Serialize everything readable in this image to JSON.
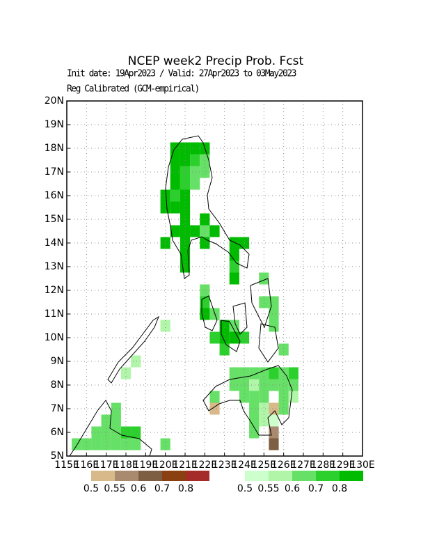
{
  "chart_data": {
    "type": "grid_map",
    "title": "NCEP week2 Precip Prob. Fcst",
    "subtitle": [
      "Init date: 19Apr2023 / Valid: 27Apr2023 to 03May2023",
      "Reg Calibrated (GCM-empirical)"
    ],
    "xlim": [
      115,
      130
    ],
    "ylim": [
      5,
      20
    ],
    "xticks": [
      {
        "value": 115,
        "label": "115E"
      },
      {
        "value": 116,
        "label": "116E"
      },
      {
        "value": 117,
        "label": "117E"
      },
      {
        "value": 118,
        "label": "118E"
      },
      {
        "value": 119,
        "label": "119E"
      },
      {
        "value": 120,
        "label": "120E"
      },
      {
        "value": 121,
        "label": "121E"
      },
      {
        "value": 122,
        "label": "122E"
      },
      {
        "value": 123,
        "label": "123E"
      },
      {
        "value": 124,
        "label": "124E"
      },
      {
        "value": 125,
        "label": "125E"
      },
      {
        "value": 126,
        "label": "126E"
      },
      {
        "value": 127,
        "label": "127E"
      },
      {
        "value": 128,
        "label": "128E"
      },
      {
        "value": 129,
        "label": "129E"
      },
      {
        "value": 130,
        "label": "130E"
      }
    ],
    "yticks": [
      {
        "value": 5,
        "label": "5N"
      },
      {
        "value": 6,
        "label": "6N"
      },
      {
        "value": 7,
        "label": "7N"
      },
      {
        "value": 8,
        "label": "8N"
      },
      {
        "value": 9,
        "label": "9N"
      },
      {
        "value": 10,
        "label": "10N"
      },
      {
        "value": 11,
        "label": "11N"
      },
      {
        "value": 12,
        "label": "12N"
      },
      {
        "value": 13,
        "label": "13N"
      },
      {
        "value": 14,
        "label": "14N"
      },
      {
        "value": 15,
        "label": "15N"
      },
      {
        "value": 16,
        "label": "16N"
      },
      {
        "value": 17,
        "label": "17N"
      },
      {
        "value": 18,
        "label": "18N"
      },
      {
        "value": 19,
        "label": "19N"
      },
      {
        "value": 20,
        "label": "20N"
      }
    ],
    "grid": true,
    "cell_size": 0.5,
    "dry_legend": {
      "labels": [
        0.5,
        0.55,
        0.6,
        0.7,
        0.8
      ],
      "colors": [
        "#d7b98a",
        "#a98a6e",
        "#7e5e42",
        "#8a4010",
        "#a52a2a"
      ]
    },
    "wet_legend": {
      "labels": [
        0.5,
        0.55,
        0.6,
        0.7,
        0.8
      ],
      "colors": [
        "#ccffcc",
        "#b0f5a8",
        "#66e066",
        "#2cd02c",
        "#00bb00"
      ]
    },
    "wet_cells": [
      [
        120.25,
        17.75,
        0.85
      ],
      [
        120.75,
        17.75,
        0.85
      ],
      [
        121.25,
        17.75,
        0.85
      ],
      [
        121.75,
        17.75,
        0.85
      ],
      [
        120.25,
        17.25,
        0.85
      ],
      [
        120.75,
        17.25,
        0.85
      ],
      [
        121.25,
        17.25,
        0.75
      ],
      [
        121.75,
        17.25,
        0.65
      ],
      [
        120.25,
        16.75,
        0.85
      ],
      [
        120.75,
        16.75,
        0.75
      ],
      [
        121.25,
        16.75,
        0.65
      ],
      [
        121.75,
        16.75,
        0.65
      ],
      [
        120.25,
        16.25,
        0.85
      ],
      [
        120.75,
        16.25,
        0.75
      ],
      [
        121.25,
        16.25,
        0.65
      ],
      [
        119.75,
        15.75,
        0.85
      ],
      [
        120.25,
        15.75,
        0.75
      ],
      [
        120.75,
        15.75,
        0.85
      ],
      [
        119.75,
        15.25,
        0.85
      ],
      [
        120.25,
        15.25,
        0.85
      ],
      [
        120.75,
        15.25,
        0.85
      ],
      [
        120.75,
        14.75,
        0.85
      ],
      [
        121.75,
        14.75,
        0.85
      ],
      [
        120.25,
        14.25,
        0.85
      ],
      [
        120.75,
        14.25,
        0.85
      ],
      [
        121.25,
        14.25,
        0.85
      ],
      [
        121.75,
        14.25,
        0.65
      ],
      [
        122.25,
        14.25,
        0.85
      ],
      [
        119.75,
        13.75,
        0.85
      ],
      [
        120.75,
        13.75,
        0.85
      ],
      [
        121.75,
        13.75,
        0.85
      ],
      [
        123.25,
        13.75,
        0.85
      ],
      [
        123.75,
        13.75,
        0.85
      ],
      [
        120.75,
        13.25,
        0.85
      ],
      [
        123.25,
        13.25,
        0.85
      ],
      [
        120.75,
        12.75,
        0.85
      ],
      [
        123.25,
        12.75,
        0.75
      ],
      [
        123.25,
        12.25,
        0.85
      ],
      [
        124.75,
        12.25,
        0.65
      ],
      [
        121.75,
        11.75,
        0.65
      ],
      [
        121.75,
        11.25,
        0.75
      ],
      [
        124.75,
        11.25,
        0.65
      ],
      [
        125.25,
        11.25,
        0.65
      ],
      [
        121.75,
        10.75,
        0.85
      ],
      [
        122.25,
        10.75,
        0.65
      ],
      [
        125.25,
        10.75,
        0.65
      ],
      [
        122.75,
        10.25,
        0.85
      ],
      [
        123.25,
        10.25,
        0.65
      ],
      [
        125.25,
        10.25,
        0.65
      ],
      [
        122.75,
        9.75,
        0.85
      ],
      [
        123.25,
        9.75,
        0.85
      ],
      [
        122.25,
        9.75,
        0.75
      ],
      [
        123.75,
        9.75,
        0.75
      ],
      [
        122.75,
        9.25,
        0.75
      ],
      [
        125.75,
        9.25,
        0.65
      ],
      [
        123.25,
        8.25,
        0.65
      ],
      [
        123.75,
        8.25,
        0.65
      ],
      [
        124.25,
        8.25,
        0.65
      ],
      [
        124.75,
        8.25,
        0.65
      ],
      [
        125.25,
        8.25,
        0.75
      ],
      [
        125.75,
        8.25,
        0.65
      ],
      [
        126.25,
        8.25,
        0.75
      ],
      [
        123.25,
        7.75,
        0.65
      ],
      [
        123.75,
        7.75,
        0.65
      ],
      [
        124.25,
        7.75,
        0.57
      ],
      [
        124.75,
        7.75,
        0.65
      ],
      [
        125.25,
        7.75,
        0.65
      ],
      [
        125.75,
        7.75,
        0.65
      ],
      [
        126.25,
        7.75,
        0.65
      ],
      [
        122.25,
        7.25,
        0.65
      ],
      [
        123.75,
        7.25,
        0.65
      ],
      [
        124.25,
        7.25,
        0.65
      ],
      [
        124.75,
        7.25,
        0.65
      ],
      [
        125.75,
        7.25,
        0.65
      ],
      [
        126.25,
        7.25,
        0.57
      ],
      [
        124.25,
        6.75,
        0.65
      ],
      [
        124.75,
        6.75,
        0.57
      ],
      [
        125.75,
        6.75,
        0.65
      ],
      [
        124.25,
        6.25,
        0.65
      ],
      [
        124.75,
        6.25,
        0.57
      ],
      [
        125.25,
        6.25,
        0.52
      ],
      [
        124.25,
        5.75,
        0.65
      ],
      [
        117.25,
        6.75,
        0.65
      ],
      [
        116.75,
        6.25,
        0.65
      ],
      [
        117.25,
        6.25,
        0.65
      ],
      [
        116.25,
        5.75,
        0.65
      ],
      [
        116.75,
        5.75,
        0.65
      ],
      [
        117.25,
        5.75,
        0.65
      ],
      [
        117.75,
        5.75,
        0.75
      ],
      [
        118.25,
        5.75,
        0.75
      ],
      [
        115.25,
        5.25,
        0.65
      ],
      [
        115.75,
        5.25,
        0.65
      ],
      [
        116.25,
        5.25,
        0.65
      ],
      [
        116.75,
        5.25,
        0.65
      ],
      [
        117.25,
        5.25,
        0.65
      ],
      [
        117.75,
        5.25,
        0.65
      ],
      [
        118.25,
        5.25,
        0.65
      ],
      [
        118.25,
        8.75,
        0.57
      ],
      [
        117.75,
        8.25,
        0.57
      ],
      [
        119.75,
        10.25,
        0.57
      ],
      [
        119.75,
        5.25,
        0.65
      ]
    ],
    "dry_cells": [
      [
        122.25,
        6.75,
        0.52
      ],
      [
        125.25,
        6.75,
        0.52
      ],
      [
        125.25,
        5.75,
        0.57
      ],
      [
        125.25,
        5.25,
        0.65
      ]
    ]
  }
}
